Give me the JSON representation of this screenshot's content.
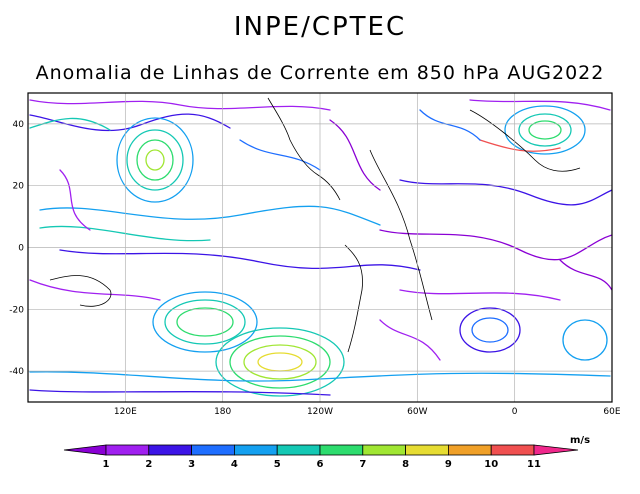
{
  "header": {
    "title": "INPE/CPTEC"
  },
  "map": {
    "title": "Anomalia de Linhas de Corrente em 850 hPa AUG2022",
    "lat_ticks": [
      {
        "value": 40,
        "label": "40"
      },
      {
        "value": 20,
        "label": "20"
      },
      {
        "value": 0,
        "label": "0"
      },
      {
        "value": -20,
        "label": "-20"
      },
      {
        "value": -40,
        "label": "-40"
      }
    ],
    "lon_ticks": [
      {
        "value": 120,
        "label": "120E"
      },
      {
        "value": 180,
        "label": "180"
      },
      {
        "value": 240,
        "label": "120W"
      },
      {
        "value": 300,
        "label": "60W"
      },
      {
        "value": 360,
        "label": "0"
      },
      {
        "value": 420,
        "label": "60E"
      }
    ],
    "extent": {
      "lon": [
        60,
        420
      ],
      "lat": [
        -50,
        50
      ]
    }
  },
  "colorbar": {
    "unit": "m/s",
    "labels": [
      "1",
      "2",
      "3",
      "4",
      "5",
      "6",
      "7",
      "8",
      "9",
      "10",
      "11"
    ],
    "colors": [
      "#8a00d4",
      "#a020f0",
      "#3c14e6",
      "#1e6eff",
      "#14a0f0",
      "#14c8b4",
      "#2ddc6e",
      "#a0e632",
      "#e6dc32",
      "#f0a028",
      "#f05050",
      "#f0288c"
    ]
  }
}
